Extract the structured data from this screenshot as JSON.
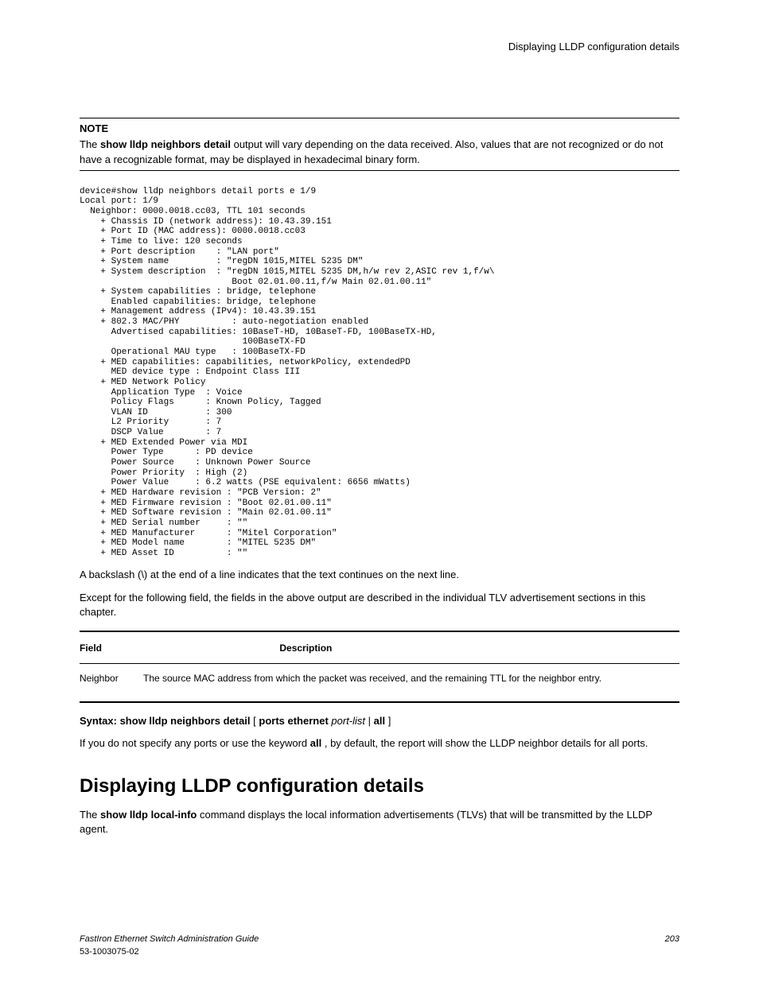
{
  "header": {
    "title": "Displaying LLDP configuration details"
  },
  "note": {
    "label": "NOTE",
    "pre": "The ",
    "cmd": "show lldp neighbors detail",
    "post": " output will vary depending on the data received. Also, values that are not recognized or do not have a recognizable format, may be displayed in hexadecimal binary form."
  },
  "code": "device#show lldp neighbors detail ports e 1/9\nLocal port: 1/9\n  Neighbor: 0000.0018.cc03, TTL 101 seconds\n    + Chassis ID (network address): 10.43.39.151\n    + Port ID (MAC address): 0000.0018.cc03\n    + Time to live: 120 seconds\n    + Port description    : \"LAN port\"\n    + System name         : \"regDN 1015,MITEL 5235 DM\"\n    + System description  : \"regDN 1015,MITEL 5235 DM,h/w rev 2,ASIC rev 1,f/w\\\n                             Boot 02.01.00.11,f/w Main 02.01.00.11\"\n    + System capabilities : bridge, telephone\n      Enabled capabilities: bridge, telephone\n    + Management address (IPv4): 10.43.39.151\n    + 802.3 MAC/PHY          : auto-negotiation enabled\n      Advertised capabilities: 10BaseT-HD, 10BaseT-FD, 100BaseTX-HD,\n                               100BaseTX-FD\n      Operational MAU type   : 100BaseTX-FD\n    + MED capabilities: capabilities, networkPolicy, extendedPD\n      MED device type : Endpoint Class III\n    + MED Network Policy\n      Application Type  : Voice\n      Policy Flags      : Known Policy, Tagged\n      VLAN ID           : 300\n      L2 Priority       : 7\n      DSCP Value        : 7\n    + MED Extended Power via MDI\n      Power Type      : PD device\n      Power Source    : Unknown Power Source\n      Power Priority  : High (2)\n      Power Value     : 6.2 watts (PSE equivalent: 6656 mWatts)\n    + MED Hardware revision : \"PCB Version: 2\"\n    + MED Firmware revision : \"Boot 02.01.00.11\"\n    + MED Software revision : \"Main 02.01.00.11\"\n    + MED Serial number     : \"\"\n    + MED Manufacturer      : \"Mitel Corporation\"\n    + MED Model name        : \"MITEL 5235 DM\"\n    + MED Asset ID          : \"\"",
  "para1": "A backslash (\\) at the end of a line indicates that the text continues on the next line.",
  "para2": "Except for the following field, the fields in the above output are described in the individual TLV advertisement sections in this chapter.",
  "table": {
    "head_field": "Field",
    "head_desc": "Description",
    "row_field": "Neighbor",
    "row_desc": "The source MAC address from which the packet was received, and the remaining TTL for the neighbor entry."
  },
  "syntax": {
    "label": "Syntax: ",
    "cmd1": "show lldp neighbors detail",
    "brkt_open": " [ ",
    "cmd2": "ports ethernet",
    "arg": " port-list",
    "sep": " | ",
    "cmd3": "all",
    "brkt_close": " ]"
  },
  "para3a": "If you do not specify any ports or use the keyword ",
  "para3b": "all",
  "para3c": " , by default, the report will show the LLDP neighbor details for all ports.",
  "section": {
    "heading": "Displaying LLDP configuration details"
  },
  "para4a": "The ",
  "para4b": "show lldp local-info",
  "para4c": " command displays the local information advertisements (TLVs) that will be transmitted by the LLDP agent.",
  "footer": {
    "guide": "FastIron Ethernet Switch Administration Guide",
    "page": "203",
    "docid": "53-1003075-02"
  }
}
